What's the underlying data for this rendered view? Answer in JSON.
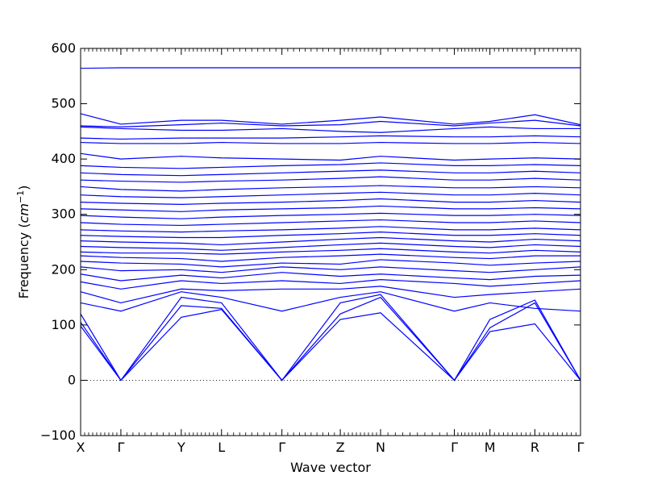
{
  "chart_data": {
    "type": "line",
    "title": "",
    "xlabel": "Wave vector",
    "ylabel_prefix": "Frequency (",
    "ylabel_unit_base": "cm",
    "ylabel_unit_exp": "−1",
    "ylabel_suffix": ")",
    "ylim": [
      -100,
      600
    ],
    "yticks": [
      -100,
      0,
      100,
      200,
      300,
      400,
      500,
      600
    ],
    "ytick_labels": [
      "−100",
      "0",
      "100",
      "200",
      "300",
      "400",
      "500",
      "600"
    ],
    "high_symmetry_points": [
      {
        "label": "X",
        "position": 0.0
      },
      {
        "label": "Γ",
        "position": 0.6
      },
      {
        "label": "Y",
        "position": 1.5
      },
      {
        "label": "L",
        "position": 2.1
      },
      {
        "label": "Γ",
        "position": 3.0
      },
      {
        "label": "Z",
        "position": 3.87
      },
      {
        "label": "N",
        "position": 4.47
      },
      {
        "label": "Γ",
        "position": 5.57
      },
      {
        "label": "M",
        "position": 6.1
      },
      {
        "label": "R",
        "position": 6.77
      },
      {
        "label": "Γ",
        "position": 7.45
      }
    ],
    "xlim": [
      0,
      7.45
    ],
    "grid": false,
    "legend": "none",
    "zero_reference_line": "dotted",
    "line_color": "#0000ff",
    "series": [
      {
        "x": [
          0,
          0.6,
          1.5,
          2.1,
          3.0,
          3.87,
          4.47,
          5.57,
          6.1,
          6.77,
          7.45
        ],
        "values": [
          98,
          0,
          114,
          128,
          0,
          110,
          122,
          0,
          88,
          102,
          0
        ]
      },
      {
        "x": [
          0,
          0.6,
          1.5,
          2.1,
          3.0,
          3.87,
          4.47,
          5.57,
          6.1,
          6.77,
          7.45
        ],
        "values": [
          105,
          0,
          135,
          130,
          0,
          120,
          150,
          0,
          95,
          140,
          0
        ]
      },
      {
        "x": [
          0,
          0.6,
          1.5,
          2.1,
          3.0,
          3.87,
          4.47,
          5.57,
          6.1,
          6.77,
          7.45
        ],
        "values": [
          120,
          0,
          150,
          140,
          0,
          140,
          155,
          0,
          110,
          145,
          0
        ]
      },
      {
        "x": [
          0,
          0.6,
          1.5,
          2.1,
          3.0,
          3.87,
          4.47,
          5.57,
          6.1,
          6.77,
          7.45
        ],
        "values": [
          140,
          125,
          160,
          150,
          125,
          150,
          160,
          125,
          140,
          130,
          125
        ]
      },
      {
        "x": [
          0,
          0.6,
          1.5,
          2.1,
          3.0,
          3.87,
          4.47,
          5.57,
          6.1,
          6.77,
          7.45
        ],
        "values": [
          160,
          140,
          165,
          162,
          165,
          165,
          170,
          150,
          155,
          160,
          165
        ]
      },
      {
        "x": [
          0,
          0.6,
          1.5,
          2.1,
          3.0,
          3.87,
          4.47,
          5.57,
          6.1,
          6.77,
          7.45
        ],
        "values": [
          178,
          165,
          180,
          175,
          180,
          175,
          182,
          175,
          170,
          175,
          180
        ]
      },
      {
        "x": [
          0,
          0.6,
          1.5,
          2.1,
          3.0,
          3.87,
          4.47,
          5.57,
          6.1,
          6.77,
          7.45
        ],
        "values": [
          192,
          180,
          190,
          185,
          195,
          188,
          192,
          185,
          182,
          188,
          190
        ]
      },
      {
        "x": [
          0,
          0.6,
          1.5,
          2.1,
          3.0,
          3.87,
          4.47,
          5.57,
          6.1,
          6.77,
          7.45
        ],
        "values": [
          205,
          198,
          200,
          195,
          205,
          200,
          205,
          198,
          195,
          200,
          205
        ]
      },
      {
        "x": [
          0,
          0.6,
          1.5,
          2.1,
          3.0,
          3.87,
          4.47,
          5.57,
          6.1,
          6.77,
          7.45
        ],
        "values": [
          215,
          212,
          210,
          205,
          212,
          210,
          218,
          212,
          208,
          212,
          215
        ]
      },
      {
        "x": [
          0,
          0.6,
          1.5,
          2.1,
          3.0,
          3.87,
          4.47,
          5.57,
          6.1,
          6.77,
          7.45
        ],
        "values": [
          225,
          222,
          220,
          215,
          222,
          225,
          228,
          222,
          220,
          225,
          225
        ]
      },
      {
        "x": [
          0,
          0.6,
          1.5,
          2.1,
          3.0,
          3.87,
          4.47,
          5.57,
          6.1,
          6.77,
          7.45
        ],
        "values": [
          232,
          230,
          230,
          228,
          232,
          235,
          238,
          232,
          230,
          235,
          232
        ]
      },
      {
        "x": [
          0,
          0.6,
          1.5,
          2.1,
          3.0,
          3.87,
          4.47,
          5.57,
          6.1,
          6.77,
          7.45
        ],
        "values": [
          242,
          240,
          238,
          235,
          240,
          245,
          248,
          242,
          240,
          245,
          242
        ]
      },
      {
        "x": [
          0,
          0.6,
          1.5,
          2.1,
          3.0,
          3.87,
          4.47,
          5.57,
          6.1,
          6.77,
          7.45
        ],
        "values": [
          252,
          250,
          248,
          245,
          250,
          255,
          258,
          252,
          250,
          255,
          252
        ]
      },
      {
        "x": [
          0,
          0.6,
          1.5,
          2.1,
          3.0,
          3.87,
          4.47,
          5.57,
          6.1,
          6.77,
          7.45
        ],
        "values": [
          262,
          260,
          258,
          258,
          262,
          265,
          268,
          262,
          262,
          265,
          262
        ]
      },
      {
        "x": [
          0,
          0.6,
          1.5,
          2.1,
          3.0,
          3.87,
          4.47,
          5.57,
          6.1,
          6.77,
          7.45
        ],
        "values": [
          272,
          270,
          268,
          270,
          272,
          275,
          278,
          272,
          272,
          275,
          272
        ]
      },
      {
        "x": [
          0,
          0.6,
          1.5,
          2.1,
          3.0,
          3.87,
          4.47,
          5.57,
          6.1,
          6.77,
          7.45
        ],
        "values": [
          285,
          282,
          280,
          282,
          285,
          288,
          290,
          285,
          285,
          288,
          285
        ]
      },
      {
        "x": [
          0,
          0.6,
          1.5,
          2.1,
          3.0,
          3.87,
          4.47,
          5.57,
          6.1,
          6.77,
          7.45
        ],
        "values": [
          298,
          295,
          292,
          295,
          298,
          300,
          302,
          298,
          298,
          300,
          298
        ]
      },
      {
        "x": [
          0,
          0.6,
          1.5,
          2.1,
          3.0,
          3.87,
          4.47,
          5.57,
          6.1,
          6.77,
          7.45
        ],
        "values": [
          310,
          308,
          305,
          308,
          310,
          312,
          315,
          310,
          310,
          312,
          310
        ]
      },
      {
        "x": [
          0,
          0.6,
          1.5,
          2.1,
          3.0,
          3.87,
          4.47,
          5.57,
          6.1,
          6.77,
          7.45
        ],
        "values": [
          322,
          320,
          318,
          320,
          322,
          325,
          328,
          322,
          322,
          325,
          322
        ]
      },
      {
        "x": [
          0,
          0.6,
          1.5,
          2.1,
          3.0,
          3.87,
          4.47,
          5.57,
          6.1,
          6.77,
          7.45
        ],
        "values": [
          335,
          332,
          330,
          332,
          335,
          338,
          340,
          335,
          335,
          338,
          335
        ]
      },
      {
        "x": [
          0,
          0.6,
          1.5,
          2.1,
          3.0,
          3.87,
          4.47,
          5.57,
          6.1,
          6.77,
          7.45
        ],
        "values": [
          350,
          345,
          342,
          345,
          348,
          350,
          352,
          348,
          348,
          350,
          348
        ]
      },
      {
        "x": [
          0,
          0.6,
          1.5,
          2.1,
          3.0,
          3.87,
          4.47,
          5.57,
          6.1,
          6.77,
          7.45
        ],
        "values": [
          362,
          360,
          358,
          360,
          362,
          365,
          368,
          362,
          362,
          365,
          362
        ]
      },
      {
        "x": [
          0,
          0.6,
          1.5,
          2.1,
          3.0,
          3.87,
          4.47,
          5.57,
          6.1,
          6.77,
          7.45
        ],
        "values": [
          375,
          372,
          370,
          372,
          375,
          378,
          380,
          375,
          375,
          378,
          375
        ]
      },
      {
        "x": [
          0,
          0.6,
          1.5,
          2.1,
          3.0,
          3.87,
          4.47,
          5.57,
          6.1,
          6.77,
          7.45
        ],
        "values": [
          388,
          385,
          383,
          385,
          388,
          390,
          393,
          388,
          388,
          390,
          388
        ]
      },
      {
        "x": [
          0,
          0.6,
          1.5,
          2.1,
          3.0,
          3.87,
          4.47,
          5.57,
          6.1,
          6.77,
          7.45
        ],
        "values": [
          410,
          400,
          405,
          402,
          400,
          398,
          405,
          398,
          400,
          402,
          400
        ]
      },
      {
        "x": [
          0,
          0.6,
          1.5,
          2.1,
          3.0,
          3.87,
          4.47,
          5.57,
          6.1,
          6.77,
          7.45
        ],
        "values": [
          430,
          428,
          428,
          430,
          428,
          428,
          430,
          428,
          428,
          430,
          428
        ]
      },
      {
        "x": [
          0,
          0.6,
          1.5,
          2.1,
          3.0,
          3.87,
          4.47,
          5.57,
          6.1,
          6.77,
          7.45
        ],
        "values": [
          438,
          436,
          438,
          438,
          438,
          440,
          442,
          440,
          440,
          442,
          440
        ]
      },
      {
        "x": [
          0,
          0.6,
          1.5,
          2.1,
          3.0,
          3.87,
          4.47,
          5.57,
          6.1,
          6.77,
          7.45
        ],
        "values": [
          458,
          455,
          452,
          452,
          455,
          450,
          448,
          455,
          458,
          455,
          455
        ]
      },
      {
        "x": [
          0,
          0.6,
          1.5,
          2.1,
          3.0,
          3.87,
          4.47,
          5.57,
          6.1,
          6.77,
          7.45
        ],
        "values": [
          460,
          458,
          462,
          465,
          460,
          462,
          468,
          460,
          465,
          470,
          460
        ]
      },
      {
        "x": [
          0,
          0.6,
          1.5,
          2.1,
          3.0,
          3.87,
          4.47,
          5.57,
          6.1,
          6.77,
          7.45
        ],
        "values": [
          482,
          463,
          470,
          470,
          463,
          470,
          476,
          463,
          468,
          480,
          462
        ]
      },
      {
        "x": [
          0,
          0.6,
          1.5,
          2.1,
          3.0,
          3.87,
          4.47,
          5.57,
          6.1,
          6.77,
          7.45
        ],
        "values": [
          564,
          565,
          565,
          565,
          565,
          565,
          565,
          565,
          565,
          565,
          565
        ]
      }
    ]
  }
}
